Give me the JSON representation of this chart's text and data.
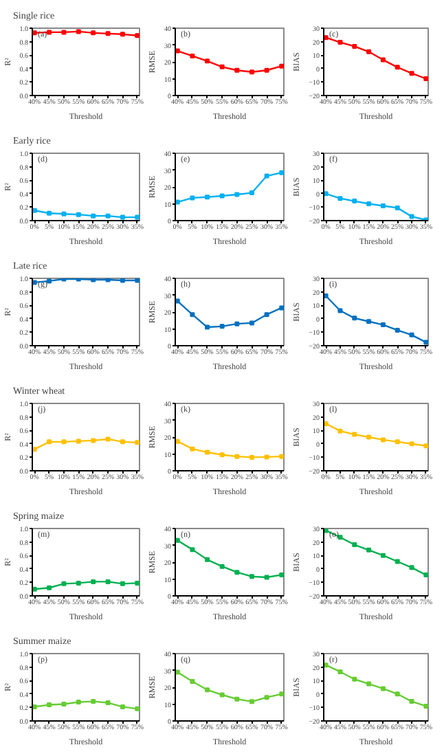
{
  "chart_data": [
    {
      "type": "line",
      "title": "Single rice",
      "annotations": [
        "(a)"
      ],
      "xlabel": "Threshold",
      "ylabel": "R²",
      "categories": [
        "40%",
        "45%",
        "50%",
        "55%",
        "60%",
        "65%",
        "70%",
        "75%"
      ],
      "series": [
        {
          "color": "#ff0000",
          "values": [
            0.93,
            0.94,
            0.94,
            0.95,
            0.93,
            0.92,
            0.91,
            0.89
          ]
        }
      ],
      "ylim": [
        0,
        1
      ],
      "yticks": [
        {
          "value": 0,
          "label": "0.0"
        },
        {
          "value": 0.2,
          "label": "0.2"
        },
        {
          "value": 0.4,
          "label": "0.4"
        },
        {
          "value": 0.6,
          "label": "0.6"
        },
        {
          "value": 0.8,
          "label": "0.8"
        },
        {
          "value": 1,
          "label": "1.0"
        }
      ],
      "marker": "square",
      "grid": false
    },
    {
      "type": "line",
      "annotations": [
        "(b)"
      ],
      "xlabel": "Threshold",
      "ylabel": "RMSE",
      "categories": [
        "40%",
        "45%",
        "50%",
        "55%",
        "60%",
        "65%",
        "70%",
        "75%"
      ],
      "series": [
        {
          "color": "#ff0000",
          "values": [
            26.5,
            23.5,
            20.5,
            17,
            15,
            14,
            15,
            17.5
          ]
        }
      ],
      "ylim": [
        0,
        40
      ],
      "yticks": [
        0,
        10,
        20,
        30,
        40
      ],
      "marker": "square",
      "grid": false
    },
    {
      "type": "line",
      "annotations": [
        "(c)"
      ],
      "xlabel": "Threshold",
      "ylabel": "BIAS",
      "categories": [
        "40%",
        "45%",
        "50%",
        "55%",
        "60%",
        "65%",
        "70%",
        "75%"
      ],
      "series": [
        {
          "color": "#ff0000",
          "values": [
            23,
            19.5,
            16.5,
            12.5,
            6.5,
            1,
            -3.5,
            -7.5
          ]
        }
      ],
      "ylim": [
        -20,
        30
      ],
      "yticks": [
        -20,
        -10,
        0,
        10,
        20,
        30
      ],
      "marker": "square",
      "grid": false
    },
    {
      "type": "line",
      "title": "Early rice",
      "annotations": [
        "(d)"
      ],
      "xlabel": "Threshold",
      "ylabel": "R²",
      "categories": [
        "0%",
        "5%",
        "10%",
        "15%",
        "20%",
        "25%",
        "30%",
        "35%"
      ],
      "series": [
        {
          "color": "#00b0f0",
          "values": [
            0.15,
            0.11,
            0.1,
            0.09,
            0.07,
            0.07,
            0.05,
            0.05
          ]
        }
      ],
      "ylim": [
        0,
        1
      ],
      "yticks": [
        {
          "value": 0,
          "label": "0.0"
        },
        {
          "value": 0.2,
          "label": "0.2"
        },
        {
          "value": 0.4,
          "label": "0.4"
        },
        {
          "value": 0.6,
          "label": "0.6"
        },
        {
          "value": 0.8,
          "label": "0.8"
        },
        {
          "value": 1,
          "label": "1.0"
        }
      ],
      "marker": "square",
      "grid": false
    },
    {
      "type": "line",
      "annotations": [
        "(e)"
      ],
      "xlabel": "Threshold",
      "ylabel": "RMSE",
      "categories": [
        "0%",
        "5%",
        "10%",
        "15%",
        "20%",
        "25%",
        "30%",
        "35%"
      ],
      "series": [
        {
          "color": "#00b0f0",
          "values": [
            11,
            13.5,
            14,
            14.7,
            15.5,
            16.5,
            26.5,
            28.5
          ]
        }
      ],
      "ylim": [
        0,
        40
      ],
      "yticks": [
        0,
        10,
        20,
        30,
        40
      ],
      "marker": "square",
      "grid": false
    },
    {
      "type": "line",
      "annotations": [
        "(f)"
      ],
      "xlabel": "Threshold",
      "ylabel": "BIAS",
      "categories": [
        "0%",
        "5%",
        "10%",
        "15%",
        "20%",
        "25%",
        "30%",
        "35%"
      ],
      "series": [
        {
          "color": "#00b0f0",
          "values": [
            0,
            -3.5,
            -5.5,
            -7.5,
            -9,
            -10.5,
            -17,
            -19.5
          ]
        }
      ],
      "ylim": [
        -20,
        30
      ],
      "yticks": [
        -20,
        -10,
        0,
        10,
        20,
        30
      ],
      "marker": "square",
      "grid": false
    },
    {
      "type": "line",
      "title": "Late rice",
      "annotations": [
        "(g)"
      ],
      "xlabel": "Threshold",
      "ylabel": "R²",
      "categories": [
        "40%",
        "45%",
        "50%",
        "55%",
        "60%",
        "65%",
        "70%",
        "75%"
      ],
      "series": [
        {
          "color": "#0070c0",
          "values": [
            0.94,
            0.96,
            0.99,
            0.99,
            0.98,
            0.98,
            0.97,
            0.97
          ]
        }
      ],
      "ylim": [
        0,
        1
      ],
      "yticks": [
        {
          "value": 0,
          "label": "0.0"
        },
        {
          "value": 0.2,
          "label": "0.2"
        },
        {
          "value": 0.4,
          "label": "0.4"
        },
        {
          "value": 0.6,
          "label": "0.6"
        },
        {
          "value": 0.8,
          "label": "0.8"
        },
        {
          "value": 1,
          "label": "1.0"
        }
      ],
      "marker": "square",
      "grid": false
    },
    {
      "type": "line",
      "annotations": [
        "(h)"
      ],
      "xlabel": "Threshold",
      "ylabel": "RMSE",
      "categories": [
        "40%",
        "45%",
        "50%",
        "55%",
        "60%",
        "65%",
        "70%",
        "75%"
      ],
      "series": [
        {
          "color": "#0070c0",
          "values": [
            26.5,
            18.5,
            11,
            11.5,
            13,
            13.5,
            18.5,
            22.5
          ]
        }
      ],
      "ylim": [
        0,
        40
      ],
      "yticks": [
        0,
        10,
        20,
        30,
        40
      ],
      "marker": "square",
      "grid": false
    },
    {
      "type": "line",
      "annotations": [
        "(i)"
      ],
      "xlabel": "Threshold",
      "ylabel": "BIAS",
      "categories": [
        "40%",
        "45%",
        "50%",
        "55%",
        "60%",
        "65%",
        "70%",
        "75%"
      ],
      "series": [
        {
          "color": "#0070c0",
          "values": [
            17,
            6,
            0.5,
            -2,
            -4.5,
            -8.5,
            -12,
            -17.5
          ]
        }
      ],
      "ylim": [
        -20,
        30
      ],
      "yticks": [
        -20,
        -10,
        0,
        10,
        20,
        30
      ],
      "marker": "square",
      "grid": false
    },
    {
      "type": "line",
      "title": "Winter wheat",
      "annotations": [
        "(j)"
      ],
      "xlabel": "Threshold",
      "ylabel": "R²",
      "categories": [
        "0%",
        "5%",
        "10%",
        "15%",
        "20%",
        "25%",
        "30%",
        "35%"
      ],
      "series": [
        {
          "color": "#ffc000",
          "values": [
            0.32,
            0.43,
            0.43,
            0.44,
            0.45,
            0.47,
            0.43,
            0.42
          ]
        }
      ],
      "ylim": [
        0,
        1
      ],
      "yticks": [
        {
          "value": 0,
          "label": "0.0"
        },
        {
          "value": 0.2,
          "label": "0.2"
        },
        {
          "value": 0.4,
          "label": "0.4"
        },
        {
          "value": 0.6,
          "label": "0.6"
        },
        {
          "value": 0.8,
          "label": "0.8"
        },
        {
          "value": 1,
          "label": "1.0"
        }
      ],
      "marker": "square",
      "grid": false
    },
    {
      "type": "line",
      "annotations": [
        "(k)"
      ],
      "xlabel": "Threshold",
      "ylabel": "RMSE",
      "categories": [
        "0%",
        "5%",
        "10%",
        "15%",
        "20%",
        "25%",
        "30%",
        "35%"
      ],
      "series": [
        {
          "color": "#ffc000",
          "values": [
            17.5,
            13,
            11,
            9.5,
            8.5,
            8,
            8.2,
            8.5
          ]
        }
      ],
      "ylim": [
        0,
        40
      ],
      "yticks": [
        0,
        10,
        20,
        30,
        40
      ],
      "marker": "square",
      "grid": false
    },
    {
      "type": "line",
      "annotations": [
        "(l)"
      ],
      "xlabel": "Threshold",
      "ylabel": "BIAS",
      "categories": [
        "0%",
        "5%",
        "10%",
        "15%",
        "20%",
        "25%",
        "30%",
        "35%"
      ],
      "series": [
        {
          "color": "#ffc000",
          "values": [
            15,
            9.5,
            7,
            5,
            3,
            1.5,
            0,
            -1.5
          ]
        }
      ],
      "ylim": [
        -20,
        30
      ],
      "yticks": [
        -20,
        -10,
        0,
        10,
        20,
        30
      ],
      "marker": "square",
      "grid": false
    },
    {
      "type": "line",
      "title": "Spring maize",
      "annotations": [
        "(m)"
      ],
      "xlabel": "Threshold",
      "ylabel": "R²",
      "categories": [
        "40%",
        "45%",
        "50%",
        "55%",
        "60%",
        "65%",
        "70%",
        "75%"
      ],
      "series": [
        {
          "color": "#00b050",
          "values": [
            0.1,
            0.12,
            0.18,
            0.19,
            0.21,
            0.21,
            0.18,
            0.19
          ]
        }
      ],
      "ylim": [
        0,
        1
      ],
      "yticks": [
        {
          "value": 0,
          "label": "0.0"
        },
        {
          "value": 0.2,
          "label": "0.2"
        },
        {
          "value": 0.4,
          "label": "0.4"
        },
        {
          "value": 0.6,
          "label": "0.6"
        },
        {
          "value": 0.8,
          "label": "0.8"
        },
        {
          "value": 1,
          "label": "1.0"
        }
      ],
      "marker": "square",
      "grid": false
    },
    {
      "type": "line",
      "annotations": [
        "(n)"
      ],
      "xlabel": "Threshold",
      "ylabel": "RMSE",
      "categories": [
        "40%",
        "45%",
        "50%",
        "55%",
        "60%",
        "65%",
        "70%",
        "75%"
      ],
      "series": [
        {
          "color": "#00b050",
          "values": [
            33,
            27.5,
            21.5,
            17.5,
            14,
            11.5,
            11,
            12.5
          ]
        }
      ],
      "ylim": [
        0,
        40
      ],
      "yticks": [
        0,
        10,
        20,
        30,
        40
      ],
      "marker": "square",
      "grid": false
    },
    {
      "type": "line",
      "annotations": [
        "(o)"
      ],
      "xlabel": "Threshold",
      "ylabel": "BIAS",
      "categories": [
        "40%",
        "45%",
        "50%",
        "55%",
        "60%",
        "65%",
        "70%",
        "75%"
      ],
      "series": [
        {
          "color": "#00b050",
          "values": [
            28.5,
            23.5,
            18,
            14,
            10,
            5.5,
            1,
            -4.5
          ]
        }
      ],
      "ylim": [
        -20,
        30
      ],
      "yticks": [
        -20,
        -10,
        0,
        10,
        20,
        30
      ],
      "marker": "square",
      "grid": false
    },
    {
      "type": "line",
      "title": "Summer maize",
      "annotations": [
        "(p)"
      ],
      "xlabel": "Threshold",
      "ylabel": "R²",
      "categories": [
        "40%",
        "45%",
        "50%",
        "55%",
        "60%",
        "65%",
        "70%",
        "75%"
      ],
      "series": [
        {
          "color": "#66cc33",
          "values": [
            0.21,
            0.24,
            0.25,
            0.28,
            0.29,
            0.27,
            0.21,
            0.18
          ]
        }
      ],
      "ylim": [
        0,
        1
      ],
      "yticks": [
        {
          "value": 0,
          "label": "0.0"
        },
        {
          "value": 0.2,
          "label": "0.2"
        },
        {
          "value": 0.4,
          "label": "0.4"
        },
        {
          "value": 0.6,
          "label": "0.6"
        },
        {
          "value": 0.8,
          "label": "0.8"
        },
        {
          "value": 1,
          "label": "1.0"
        }
      ],
      "marker": "square",
      "grid": false
    },
    {
      "type": "line",
      "annotations": [
        "(q)"
      ],
      "xlabel": "Threshold",
      "ylabel": "RMSE",
      "categories": [
        "40%",
        "45%",
        "50%",
        "55%",
        "60%",
        "65%",
        "70%",
        "75%"
      ],
      "series": [
        {
          "color": "#66cc33",
          "values": [
            29,
            23.5,
            18.5,
            15.5,
            13,
            11.5,
            14,
            16
          ]
        }
      ],
      "ylim": [
        0,
        40
      ],
      "yticks": [
        0,
        10,
        20,
        30,
        40
      ],
      "marker": "square",
      "grid": false
    },
    {
      "type": "line",
      "annotations": [
        "(r)"
      ],
      "xlabel": "Threshold",
      "ylabel": "BIAS",
      "categories": [
        "40%",
        "45%",
        "50%",
        "55%",
        "60%",
        "65%",
        "70%",
        "75%"
      ],
      "series": [
        {
          "color": "#66cc33",
          "values": [
            21.5,
            16.5,
            11,
            7.5,
            4,
            0,
            -5.5,
            -9
          ]
        }
      ],
      "ylim": [
        -20,
        30
      ],
      "yticks": [
        -20,
        -10,
        0,
        10,
        20,
        30
      ],
      "marker": "square",
      "grid": false
    }
  ]
}
